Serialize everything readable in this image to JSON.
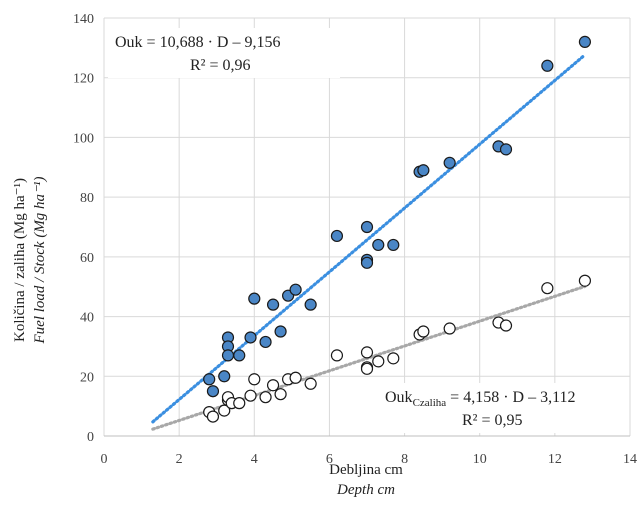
{
  "chart_data": {
    "type": "scatter",
    "xlabel": "Debljina cm",
    "xlabel_en": "Depth cm",
    "ylabel": "Količina / zaliha (Mg ha⁻¹)",
    "ylabel_en": "Fuel load / Stock (Mg ha⁻¹)",
    "xlim": [
      0,
      14
    ],
    "ylim": [
      0,
      140
    ],
    "xticks": [
      0,
      2,
      4,
      6,
      8,
      10,
      12,
      14
    ],
    "yticks": [
      0,
      20,
      40,
      60,
      80,
      100,
      120,
      140
    ],
    "grid": true,
    "series": [
      {
        "fill": "#4a86c6",
        "trend_color": "#3b8fe0",
        "equation": "Ouk = 10,688 · D – 9,156",
        "r2": "R² = 0,96",
        "trendline": {
          "slope": 10.688,
          "intercept": -9.156,
          "x_range": [
            1.3,
            12.8
          ]
        },
        "points": [
          [
            2.8,
            19
          ],
          [
            2.9,
            15
          ],
          [
            3.2,
            20
          ],
          [
            3.3,
            33
          ],
          [
            3.3,
            30
          ],
          [
            3.3,
            27
          ],
          [
            3.6,
            27
          ],
          [
            3.9,
            33
          ],
          [
            4.0,
            46
          ],
          [
            4.3,
            31.5
          ],
          [
            4.5,
            44
          ],
          [
            4.7,
            35
          ],
          [
            4.9,
            47
          ],
          [
            5.1,
            49
          ],
          [
            5.5,
            44
          ],
          [
            6.2,
            67
          ],
          [
            7.0,
            70
          ],
          [
            7.0,
            59
          ],
          [
            7.0,
            58
          ],
          [
            7.3,
            64
          ],
          [
            7.7,
            64
          ],
          [
            8.4,
            88.5
          ],
          [
            8.5,
            89
          ],
          [
            9.2,
            91.5
          ],
          [
            10.5,
            97
          ],
          [
            10.7,
            96
          ],
          [
            11.8,
            124
          ],
          [
            12.8,
            132
          ]
        ]
      },
      {
        "fill": "#ffffff",
        "trend_color": "#a8a8a8",
        "equation_prefix": "Ouk",
        "equation_sub": "Czaliha",
        "equation_rest": " = 4,158 · D – 3,112",
        "r2": "R² = 0,95",
        "trendline": {
          "slope": 4.158,
          "intercept": -3.112,
          "x_range": [
            1.3,
            12.8
          ]
        },
        "points": [
          [
            2.8,
            8
          ],
          [
            2.9,
            6.5
          ],
          [
            3.2,
            8.5
          ],
          [
            3.3,
            12
          ],
          [
            3.3,
            13
          ],
          [
            3.4,
            11
          ],
          [
            3.6,
            11
          ],
          [
            3.9,
            13.5
          ],
          [
            4.0,
            19
          ],
          [
            4.3,
            13
          ],
          [
            4.5,
            17
          ],
          [
            4.7,
            14
          ],
          [
            4.9,
            19
          ],
          [
            5.1,
            19.5
          ],
          [
            5.5,
            17.5
          ],
          [
            6.2,
            27
          ],
          [
            7.0,
            28
          ],
          [
            7.0,
            23
          ],
          [
            7.0,
            22.5
          ],
          [
            7.3,
            25
          ],
          [
            7.7,
            26
          ],
          [
            8.4,
            34
          ],
          [
            8.5,
            35
          ],
          [
            9.2,
            36
          ],
          [
            10.5,
            38
          ],
          [
            10.7,
            37
          ],
          [
            11.8,
            49.5
          ],
          [
            12.8,
            52
          ]
        ]
      }
    ]
  }
}
